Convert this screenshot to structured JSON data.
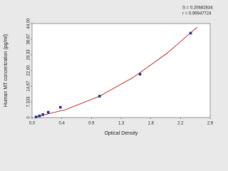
{
  "chart_data": {
    "type": "scatter",
    "x_label": "Optical Density",
    "y_label": "Human MT concentration (pg/ml)",
    "annotations": [
      "S = 0.20682834",
      "r = 0.99947724"
    ],
    "xlim": [
      0,
      2.64
    ],
    "xticks": [
      {
        "value": 0,
        "label": "0.0"
      },
      {
        "value": 0.44,
        "label": "0.4"
      },
      {
        "value": 0.88,
        "label": "0.9"
      },
      {
        "value": 1.32,
        "label": "1.3"
      },
      {
        "value": 1.76,
        "label": "1.8"
      },
      {
        "value": 2.2,
        "label": "2.2"
      },
      {
        "value": 2.64,
        "label": "2.6"
      }
    ],
    "ylim": [
      0,
      44
    ],
    "yticks": [
      0,
      {
        "value": 7.333,
        "label": "7.333"
      },
      {
        "value": 14.667,
        "label": "14.67"
      },
      {
        "value": 22,
        "label": "22.00"
      },
      {
        "value": 29.333,
        "label": "29.33"
      },
      {
        "value": 36.667,
        "label": "36.67"
      },
      {
        "value": 44,
        "label": "44.00"
      }
    ],
    "series": [
      {
        "type": "scatter",
        "color": "#1f2f8f",
        "x": [
          0.06,
          0.11,
          0.16,
          0.24,
          0.42,
          1.0,
          1.6,
          2.35
        ],
        "values": [
          0.3,
          0.8,
          1.4,
          2.5,
          4.8,
          10,
          20.3,
          39.5
        ]
      },
      {
        "type": "line",
        "color": "#b00000",
        "x": [
          0.05,
          0.5,
          1.0,
          1.5,
          2.0,
          2.45
        ],
        "values": [
          0.26,
          3.74,
          10,
          18.78,
          30.08,
          42.4
        ]
      }
    ]
  }
}
